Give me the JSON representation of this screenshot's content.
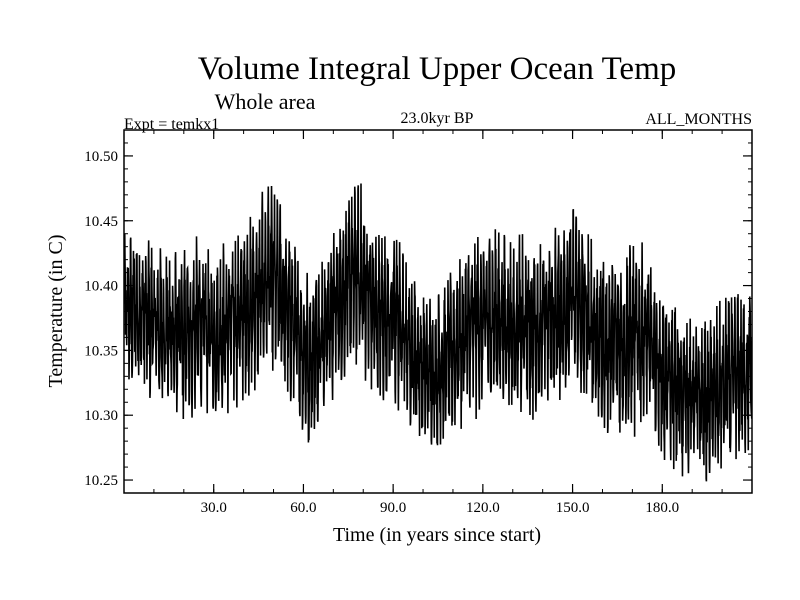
{
  "header": {
    "title": "Volume Integral Upper Ocean Temp",
    "subtitle": "Whole area",
    "experiment": "Expt = temkx1",
    "epoch": "23.0kyr BP",
    "months": "ALL_MONTHS"
  },
  "chart_data": {
    "type": "line",
    "xlabel": "Time (in years since start)",
    "ylabel": "Temperature (in C)",
    "xlim": [
      0,
      210
    ],
    "ylim": [
      10.24,
      10.52
    ],
    "x_ticks": [
      30,
      60,
      90,
      120,
      150,
      180
    ],
    "x_tick_labels": [
      "30.0",
      "60.0",
      "90.0",
      "120.0",
      "150.0",
      "180.0"
    ],
    "y_ticks": [
      10.25,
      10.3,
      10.35,
      10.4,
      10.45,
      10.5
    ],
    "y_tick_labels": [
      "10.25",
      "10.30",
      "10.35",
      "10.40",
      "10.45",
      "10.50"
    ],
    "grid": false,
    "color": "#000000",
    "sampling": "monthly",
    "series": [
      {
        "description": "monthly values oscillating around a slowly varying mean",
        "envelope_x": [
          0,
          5,
          10,
          15,
          20,
          25,
          30,
          35,
          40,
          45,
          48,
          52,
          55,
          60,
          62,
          65,
          70,
          75,
          78,
          82,
          85,
          88,
          91,
          95,
          100,
          105,
          110,
          115,
          120,
          125,
          130,
          135,
          140,
          145,
          150,
          155,
          160,
          165,
          170,
          175,
          180,
          185,
          190,
          195,
          200,
          205,
          210
        ],
        "envelope_low": [
          10.32,
          10.31,
          10.3,
          10.3,
          10.29,
          10.3,
          10.29,
          10.3,
          10.31,
          10.32,
          10.33,
          10.32,
          10.31,
          10.28,
          10.27,
          10.29,
          10.31,
          10.33,
          10.33,
          10.32,
          10.3,
          10.31,
          10.3,
          10.29,
          10.27,
          10.27,
          10.28,
          10.29,
          10.3,
          10.3,
          10.3,
          10.29,
          10.3,
          10.31,
          10.31,
          10.29,
          10.28,
          10.28,
          10.28,
          10.29,
          10.26,
          10.25,
          10.25,
          10.24,
          10.25,
          10.26,
          10.27
        ],
        "envelope_high": [
          10.44,
          10.45,
          10.44,
          10.43,
          10.43,
          10.44,
          10.43,
          10.44,
          10.45,
          10.46,
          10.49,
          10.47,
          10.45,
          10.42,
          10.41,
          10.43,
          10.45,
          10.47,
          10.49,
          10.46,
          10.45,
          10.44,
          10.45,
          10.42,
          10.4,
          10.4,
          10.42,
          10.44,
          10.45,
          10.45,
          10.44,
          10.44,
          10.44,
          10.45,
          10.47,
          10.45,
          10.43,
          10.43,
          10.44,
          10.43,
          10.4,
          10.39,
          10.38,
          10.38,
          10.39,
          10.4,
          10.4
        ]
      }
    ]
  }
}
